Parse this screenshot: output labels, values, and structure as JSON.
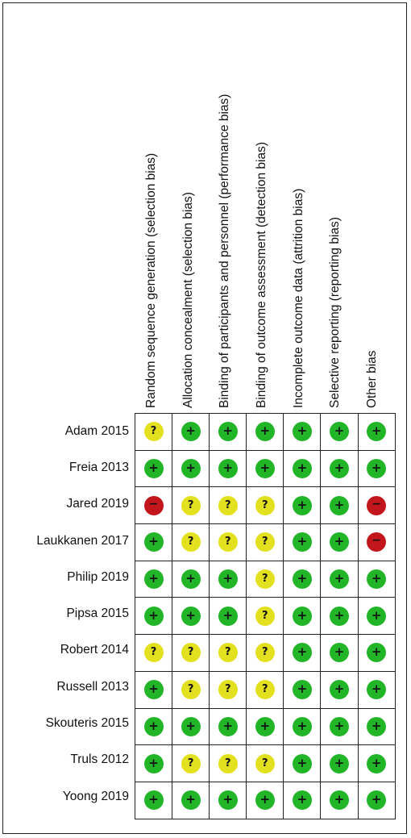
{
  "domains": [
    "Random sequence generation (selection bias)",
    "Allocation concealment (selection bias)",
    "Binding of participants and personnel (performance bias)",
    "Binding of outcome assessment (detection bias)",
    "Incomplete outcome data (attrition bias)",
    "Selective reporting (reporting bias)",
    "Other bias"
  ],
  "studies": [
    "Adam 2015",
    "Freia 2013",
    "Jared 2019",
    "Laukkanen 2017",
    "Philip 2019",
    "Pipsa 2015",
    "Robert 2014",
    "Russell 2013",
    "Skouteris 2015",
    "Truls 2012",
    "Yoong 2019"
  ],
  "ratings": [
    [
      "unclear",
      "low",
      "low",
      "low",
      "low",
      "low",
      "low"
    ],
    [
      "low",
      "low",
      "low",
      "low",
      "low",
      "low",
      "low"
    ],
    [
      "high",
      "unclear",
      "unclear",
      "unclear",
      "low",
      "low",
      "high"
    ],
    [
      "low",
      "unclear",
      "unclear",
      "unclear",
      "low",
      "low",
      "high"
    ],
    [
      "low",
      "low",
      "low",
      "unclear",
      "low",
      "low",
      "low"
    ],
    [
      "low",
      "low",
      "low",
      "unclear",
      "low",
      "low",
      "low"
    ],
    [
      "unclear",
      "unclear",
      "unclear",
      "unclear",
      "low",
      "low",
      "low"
    ],
    [
      "low",
      "unclear",
      "unclear",
      "unclear",
      "low",
      "low",
      "low"
    ],
    [
      "low",
      "low",
      "low",
      "low",
      "low",
      "low",
      "low"
    ],
    [
      "low",
      "unclear",
      "unclear",
      "unclear",
      "low",
      "low",
      "low"
    ],
    [
      "low",
      "low",
      "low",
      "low",
      "low",
      "low",
      "low"
    ]
  ],
  "symbols": {
    "low": "+",
    "unclear": "?",
    "high": "−"
  },
  "colors": {
    "low": "#22b527",
    "unclear": "#e3e11f",
    "high": "#c3161c",
    "border": "#222222"
  }
}
